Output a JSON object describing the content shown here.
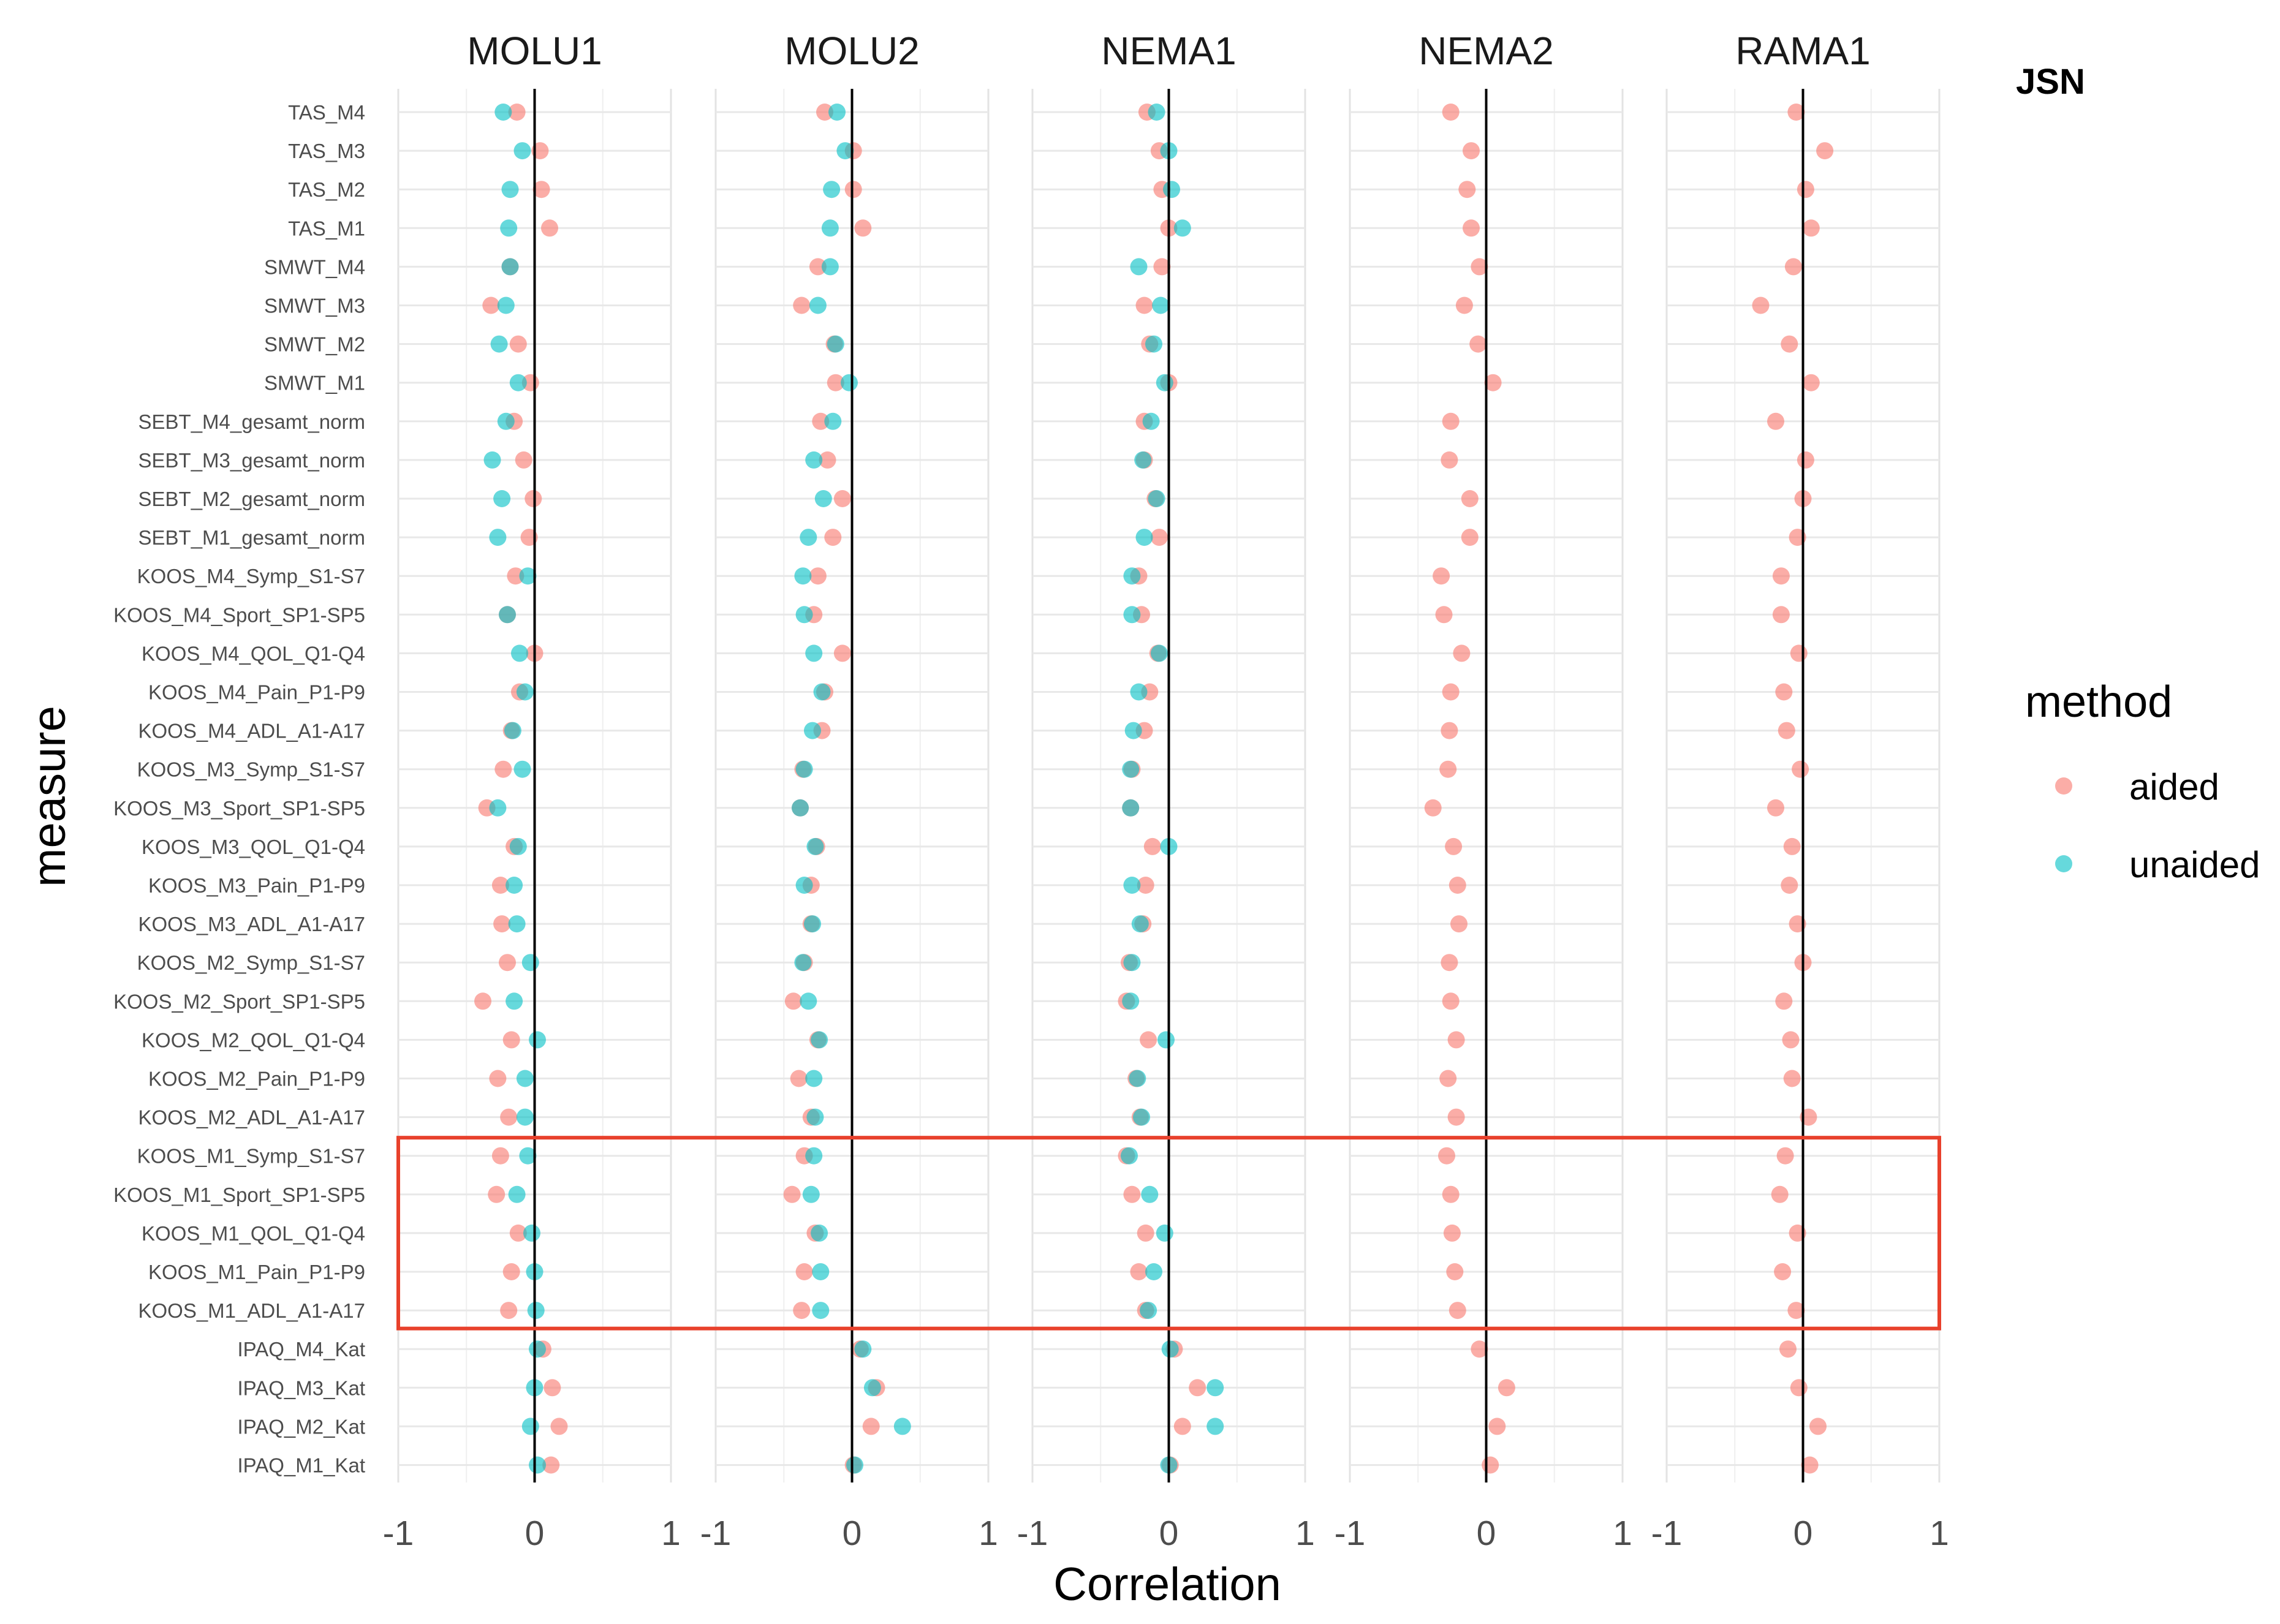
{
  "chart_data": {
    "type": "scatter",
    "facet_title": "JSN",
    "facets": [
      "MOLU1",
      "MOLU2",
      "NEMA1",
      "NEMA2",
      "RAMA1"
    ],
    "xlabel": "Correlation",
    "ylabel": "measure",
    "xlim": [
      -1,
      1
    ],
    "x_ticks": [
      "-1",
      "0",
      "1"
    ],
    "x_tick_values": [
      -1,
      0,
      1
    ],
    "reference_line_x": 0,
    "grid": true,
    "measures": [
      "TAS_M4",
      "TAS_M3",
      "TAS_M2",
      "TAS_M1",
      "SMWT_M4",
      "SMWT_M3",
      "SMWT_M2",
      "SMWT_M1",
      "SEBT_M4_gesamt_norm",
      "SEBT_M3_gesamt_norm",
      "SEBT_M2_gesamt_norm",
      "SEBT_M1_gesamt_norm",
      "KOOS_M4_Symp_S1-S7",
      "KOOS_M4_Sport_SP1-SP5",
      "KOOS_M4_QOL_Q1-Q4",
      "KOOS_M4_Pain_P1-P9",
      "KOOS_M4_ADL_A1-A17",
      "KOOS_M3_Symp_S1-S7",
      "KOOS_M3_Sport_SP1-SP5",
      "KOOS_M3_QOL_Q1-Q4",
      "KOOS_M3_Pain_P1-P9",
      "KOOS_M3_ADL_A1-A17",
      "KOOS_M2_Symp_S1-S7",
      "KOOS_M2_Sport_SP1-SP5",
      "KOOS_M2_QOL_Q1-Q4",
      "KOOS_M2_Pain_P1-P9",
      "KOOS_M2_ADL_A1-A17",
      "KOOS_M1_Symp_S1-S7",
      "KOOS_M1_Sport_SP1-SP5",
      "KOOS_M1_QOL_Q1-Q4",
      "KOOS_M1_Pain_P1-P9",
      "KOOS_M1_ADL_A1-A17",
      "IPAQ_M4_Kat",
      "IPAQ_M3_Kat",
      "IPAQ_M2_Kat",
      "IPAQ_M1_Kat"
    ],
    "legend": {
      "title": "method",
      "position": "right",
      "entries": [
        {
          "name": "aided",
          "color": "#F8766D"
        },
        {
          "name": "unaided",
          "color": "#00BFC4"
        }
      ]
    },
    "highlight": {
      "color": "#E8412C",
      "measures": [
        "KOOS_M1_Symp_S1-S7",
        "KOOS_M1_Sport_SP1-SP5",
        "KOOS_M1_QOL_Q1-Q4",
        "KOOS_M1_Pain_P1-P9",
        "KOOS_M1_ADL_A1-A17"
      ]
    },
    "series": [
      {
        "name": "aided",
        "color": "#F8766D",
        "values": {
          "MOLU1": [
            -0.13,
            0.04,
            0.05,
            0.11,
            -0.18,
            -0.32,
            -0.12,
            -0.03,
            -0.15,
            -0.08,
            -0.01,
            -0.04,
            -0.14,
            -0.2,
            0,
            -0.11,
            -0.17,
            -0.23,
            -0.35,
            -0.15,
            -0.25,
            -0.24,
            -0.2,
            -0.38,
            -0.17,
            -0.27,
            -0.19,
            -0.25,
            -0.28,
            -0.12,
            -0.17,
            -0.19,
            0.06,
            0.13,
            0.18,
            0.12
          ],
          "MOLU2": [
            -0.2,
            0.01,
            0.01,
            0.08,
            -0.25,
            -0.37,
            -0.13,
            -0.12,
            -0.23,
            -0.18,
            -0.07,
            -0.14,
            -0.25,
            -0.28,
            -0.07,
            -0.2,
            -0.22,
            -0.36,
            -0.38,
            -0.26,
            -0.3,
            -0.3,
            -0.35,
            -0.43,
            -0.25,
            -0.39,
            -0.3,
            -0.35,
            -0.44,
            -0.27,
            -0.35,
            -0.37,
            0.06,
            0.18,
            0.14,
            0.01
          ],
          "NEMA1": [
            -0.16,
            -0.07,
            -0.05,
            0,
            -0.05,
            -0.18,
            -0.14,
            0,
            -0.18,
            -0.18,
            -0.1,
            -0.07,
            -0.22,
            -0.2,
            -0.08,
            -0.14,
            -0.18,
            -0.27,
            -0.28,
            -0.12,
            -0.17,
            -0.19,
            -0.29,
            -0.31,
            -0.15,
            -0.24,
            -0.21,
            -0.31,
            -0.27,
            -0.17,
            -0.22,
            -0.17,
            0.04,
            0.21,
            0.1,
            0.01
          ],
          "NEMA2": [
            -0.26,
            -0.11,
            -0.14,
            -0.11,
            -0.05,
            -0.16,
            -0.06,
            0.05,
            -0.26,
            -0.27,
            -0.12,
            -0.12,
            -0.33,
            -0.31,
            -0.18,
            -0.26,
            -0.27,
            -0.28,
            -0.39,
            -0.24,
            -0.21,
            -0.2,
            -0.27,
            -0.26,
            -0.22,
            -0.28,
            -0.22,
            -0.29,
            -0.26,
            -0.25,
            -0.23,
            -0.21,
            -0.05,
            0.15,
            0.08,
            0.03
          ],
          "RAMA1": [
            -0.05,
            0.16,
            0.02,
            0.06,
            -0.07,
            -0.31,
            -0.1,
            0.06,
            -0.2,
            0.02,
            0,
            -0.04,
            -0.16,
            -0.16,
            -0.03,
            -0.14,
            -0.12,
            -0.02,
            -0.2,
            -0.08,
            -0.1,
            -0.04,
            0,
            -0.14,
            -0.09,
            -0.08,
            0.04,
            -0.13,
            -0.17,
            -0.04,
            -0.15,
            -0.05,
            -0.11,
            -0.03,
            0.11,
            0.05
          ]
        }
      },
      {
        "name": "unaided",
        "color": "#00BFC4",
        "values": {
          "MOLU1": [
            -0.23,
            -0.09,
            -0.18,
            -0.19,
            -0.18,
            -0.21,
            -0.26,
            -0.12,
            -0.21,
            -0.31,
            -0.24,
            -0.27,
            -0.05,
            -0.2,
            -0.11,
            -0.07,
            -0.16,
            -0.09,
            -0.27,
            -0.12,
            -0.15,
            -0.13,
            -0.03,
            -0.15,
            0.02,
            -0.07,
            -0.07,
            -0.05,
            -0.13,
            -0.02,
            0,
            0.01,
            0.02,
            0,
            -0.03,
            0.02
          ],
          "MOLU2": [
            -0.11,
            -0.05,
            -0.15,
            -0.16,
            -0.16,
            -0.25,
            -0.12,
            -0.02,
            -0.14,
            -0.28,
            -0.21,
            -0.32,
            -0.36,
            -0.35,
            -0.28,
            -0.22,
            -0.29,
            -0.35,
            -0.38,
            -0.27,
            -0.35,
            -0.29,
            -0.36,
            -0.32,
            -0.24,
            -0.28,
            -0.27,
            -0.28,
            -0.3,
            -0.24,
            -0.23,
            -0.23,
            0.08,
            0.15,
            0.37,
            0.02
          ],
          "NEMA1": [
            -0.09,
            0,
            0.02,
            0.1,
            -0.22,
            -0.06,
            -0.11,
            -0.03,
            -0.13,
            -0.19,
            -0.09,
            -0.18,
            -0.27,
            -0.27,
            -0.07,
            -0.22,
            -0.26,
            -0.28,
            -0.28,
            0,
            -0.27,
            -0.21,
            -0.27,
            -0.28,
            -0.02,
            -0.23,
            -0.2,
            -0.29,
            -0.14,
            -0.03,
            -0.11,
            -0.15,
            0.01,
            0.34,
            0.34,
            0
          ]
        }
      }
    ]
  }
}
